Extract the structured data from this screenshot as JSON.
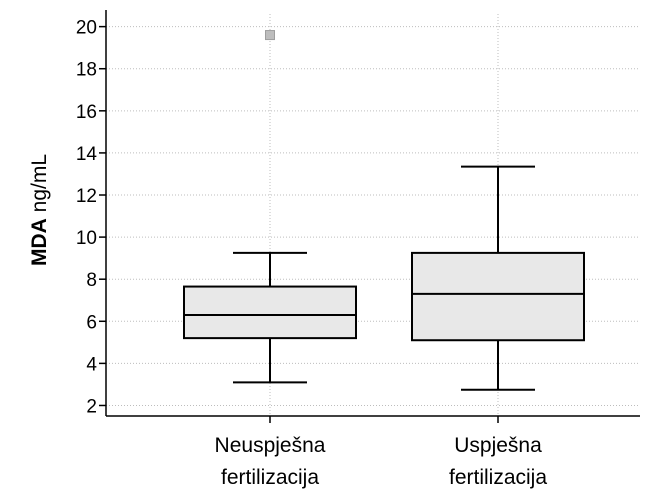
{
  "chart_data": {
    "type": "box",
    "ylabel_bold": "MDA",
    "ylabel_rest": " ng/mL",
    "ylim": [
      1.5,
      20.6
    ],
    "yticks": [
      2,
      4,
      6,
      8,
      10,
      12,
      14,
      16,
      18,
      20
    ],
    "grid": "dotted",
    "box_fill": "#e8e8e8",
    "outlier_color": "#bdbdbd",
    "categories": [
      {
        "lines": [
          "Neuspješna",
          "fertilizacija"
        ],
        "whisker_low": 3.1,
        "q1": 5.2,
        "median": 6.3,
        "q3": 7.65,
        "whisker_high": 9.25,
        "outliers": [
          19.6
        ]
      },
      {
        "lines": [
          "Uspješna",
          "fertilizacija"
        ],
        "whisker_low": 2.75,
        "q1": 5.1,
        "median": 7.3,
        "q3": 9.25,
        "whisker_high": 13.35,
        "outliers": []
      }
    ]
  }
}
